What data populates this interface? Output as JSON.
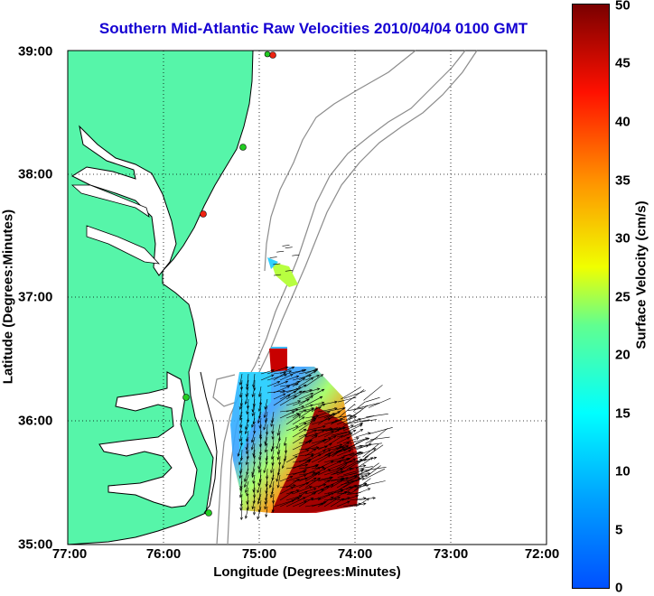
{
  "title": "Southern Mid-Atlantic Raw Velocities 2010/04/04 0100 GMT",
  "x_axis": {
    "label": "Longitude (Degrees:Minutes)",
    "ticks": [
      "77:00",
      "76:00",
      "75:00",
      "74:00",
      "73:00",
      "72:00"
    ]
  },
  "y_axis": {
    "label": "Latitude (Degrees:Minutes)",
    "ticks": [
      "39:00",
      "38:00",
      "37:00",
      "36:00",
      "35:00"
    ]
  },
  "colorbar": {
    "label": "Surface Velocity (cm/s)",
    "ticks": [
      "50",
      "45",
      "40",
      "35",
      "30",
      "25",
      "20",
      "15",
      "10",
      "5",
      "0"
    ],
    "min": 0,
    "max": 50,
    "colormap": "jet"
  },
  "colors": {
    "title": "#1400d2",
    "land": "#56f5a9",
    "coast_line": "#000000",
    "bathymetry": "#8c8c8c",
    "grid": "#000000",
    "station_green": "#22cc22",
    "station_red": "#ee2211"
  },
  "map_extent": {
    "lon_west": -77,
    "lon_east": -72,
    "lat_south": 35,
    "lat_north": 39
  },
  "grid": "dotted"
}
